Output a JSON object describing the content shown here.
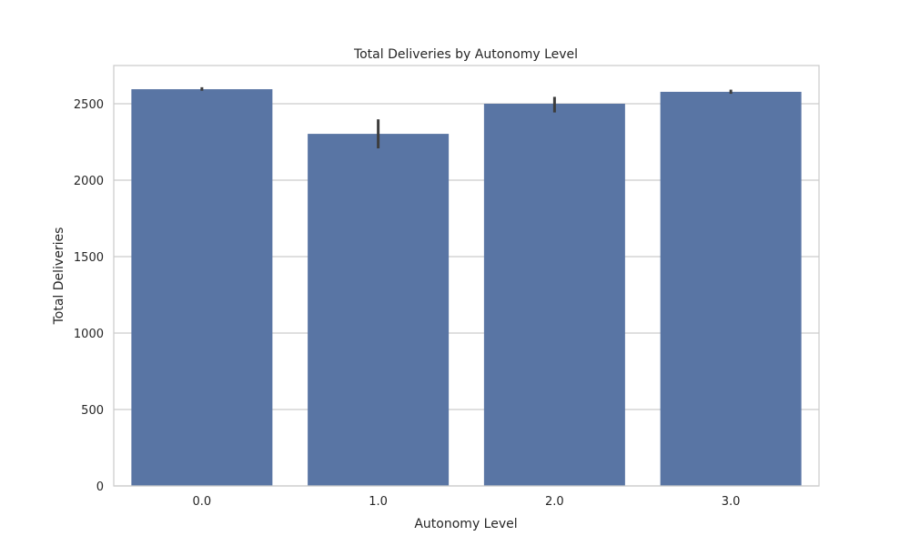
{
  "chart_data": {
    "type": "bar",
    "title": "Total Deliveries by Autonomy Level",
    "xlabel": "Autonomy Level",
    "ylabel": "Total Deliveries",
    "categories": [
      "0.0",
      "1.0",
      "2.0",
      "3.0"
    ],
    "values": [
      2595,
      2303,
      2500,
      2578
    ],
    "error_bars": [
      {
        "low": 2585,
        "high": 2608
      },
      {
        "low": 2208,
        "high": 2398
      },
      {
        "low": 2443,
        "high": 2545
      },
      {
        "low": 2565,
        "high": 2592
      }
    ],
    "ylim": [
      0,
      2750
    ],
    "yticks": [
      0,
      500,
      1000,
      1500,
      2000,
      2500
    ],
    "ytick_labels": [
      "0",
      "500",
      "1000",
      "1500",
      "2000",
      "2500"
    ],
    "grid": true,
    "colors": {
      "bar": "#5975a4",
      "error_bar": "#3d3d3d",
      "grid": "#cccccc",
      "frame": "#cccccc",
      "text": "#262626"
    }
  }
}
